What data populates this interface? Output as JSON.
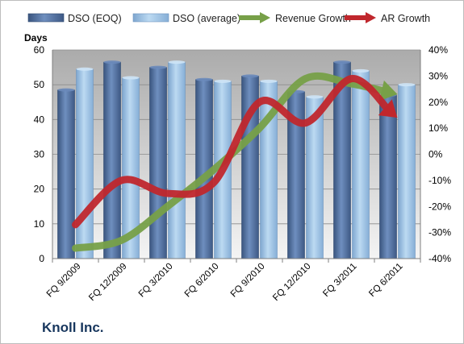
{
  "chart_data": {
    "type": "bar",
    "title": "",
    "company": "Knoll Inc.",
    "ylabel_left": "Days",
    "ylim_left": [
      0,
      60
    ],
    "ylim_right": [
      -40,
      40
    ],
    "yticks_left": [
      "0",
      "10",
      "20",
      "30",
      "40",
      "50",
      "60"
    ],
    "yticks_right": [
      "-40%",
      "-30%",
      "-20%",
      "-10%",
      "0%",
      "10%",
      "20%",
      "30%",
      "40%"
    ],
    "categories": [
      "FQ 9/2009",
      "FQ 12/2009",
      "FQ 3/2010",
      "FQ 6/2010",
      "FQ 9/2010",
      "FQ 12/2010",
      "FQ 3/2011",
      "FQ 6/2011"
    ],
    "legend_position": "top",
    "grid": "horizontal",
    "series": [
      {
        "name": "DSO (EOQ)",
        "type": "bar",
        "axis": "left",
        "color": "#4f6d9a",
        "values": [
          48.5,
          56.5,
          55,
          51.5,
          52.5,
          48,
          56.5,
          47
        ]
      },
      {
        "name": "DSO (average)",
        "type": "bar",
        "axis": "left",
        "color": "#9dc3e6",
        "values": [
          54.5,
          52,
          56.5,
          51,
          51,
          46.5,
          54,
          50
        ]
      },
      {
        "name": "Revenue Growth",
        "type": "line",
        "axis": "right",
        "color": "#77a048",
        "values": [
          -36,
          -33,
          -20,
          -6,
          10,
          29,
          27,
          23
        ]
      },
      {
        "name": "AR Growth",
        "type": "line",
        "axis": "right",
        "color": "#c0272d",
        "values": [
          -27,
          -10,
          -15,
          -11,
          20,
          12,
          29,
          14
        ]
      }
    ]
  }
}
